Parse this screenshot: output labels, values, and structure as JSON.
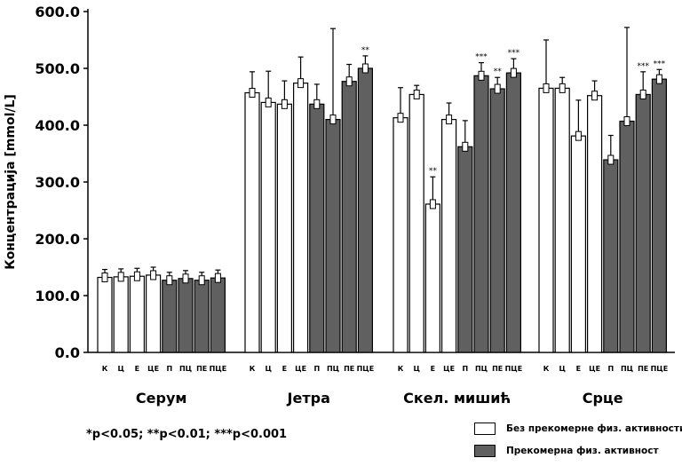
{
  "chart_data": {
    "type": "bar",
    "ylabel": "Концентрација [mmol/L]",
    "ylim": [
      0,
      600
    ],
    "yticks": [
      "0.0",
      "100.0",
      "200.0",
      "300.0",
      "400.0",
      "500.0",
      "600.0"
    ],
    "colors": {
      "white_fill": "#ffffff",
      "gray_fill": "#606060",
      "stroke": "#000000"
    },
    "groups": [
      {
        "name": "Серум",
        "bars": [
          {
            "label": "К",
            "value": 132,
            "err": 14,
            "fill": "white",
            "sig": ""
          },
          {
            "label": "Ц",
            "value": 133,
            "err": 14,
            "fill": "white",
            "sig": ""
          },
          {
            "label": "Е",
            "value": 134,
            "err": 14,
            "fill": "white",
            "sig": ""
          },
          {
            "label": "ЦЕ",
            "value": 136,
            "err": 14,
            "fill": "white",
            "sig": ""
          },
          {
            "label": "П",
            "value": 127,
            "err": 14,
            "fill": "gray",
            "sig": ""
          },
          {
            "label": "ПЦ",
            "value": 130,
            "err": 14,
            "fill": "gray",
            "sig": ""
          },
          {
            "label": "ПЕ",
            "value": 127,
            "err": 14,
            "fill": "gray",
            "sig": ""
          },
          {
            "label": "ПЦЕ",
            "value": 131,
            "err": 14,
            "fill": "gray",
            "sig": ""
          }
        ]
      },
      {
        "name": "Јетра",
        "bars": [
          {
            "label": "К",
            "value": 457,
            "err": 37,
            "fill": "white",
            "sig": ""
          },
          {
            "label": "Ц",
            "value": 440,
            "err": 55,
            "fill": "white",
            "sig": ""
          },
          {
            "label": "Е",
            "value": 437,
            "err": 41,
            "fill": "white",
            "sig": ""
          },
          {
            "label": "ЦЕ",
            "value": 474,
            "err": 46,
            "fill": "white",
            "sig": ""
          },
          {
            "label": "П",
            "value": 437,
            "err": 35,
            "fill": "gray",
            "sig": ""
          },
          {
            "label": "ПЦ",
            "value": 410,
            "err": 160,
            "fill": "gray",
            "sig": ""
          },
          {
            "label": "ПЕ",
            "value": 477,
            "err": 30,
            "fill": "gray",
            "sig": ""
          },
          {
            "label": "ПЦЕ",
            "value": 500,
            "err": 22,
            "fill": "gray",
            "sig": "**"
          }
        ]
      },
      {
        "name": "Скел. мишић",
        "bars": [
          {
            "label": "К",
            "value": 413,
            "err": 53,
            "fill": "white",
            "sig": ""
          },
          {
            "label": "Ц",
            "value": 454,
            "err": 16,
            "fill": "white",
            "sig": ""
          },
          {
            "label": "Е",
            "value": 261,
            "err": 48,
            "fill": "white",
            "sig": "**"
          },
          {
            "label": "ЦЕ",
            "value": 410,
            "err": 29,
            "fill": "white",
            "sig": ""
          },
          {
            "label": "П",
            "value": 362,
            "err": 46,
            "fill": "gray",
            "sig": ""
          },
          {
            "label": "ПЦ",
            "value": 487,
            "err": 23,
            "fill": "gray",
            "sig": "***"
          },
          {
            "label": "ПЕ",
            "value": 464,
            "err": 20,
            "fill": "gray",
            "sig": "**"
          },
          {
            "label": "ПЦЕ",
            "value": 492,
            "err": 25,
            "fill": "gray",
            "sig": "***"
          }
        ]
      },
      {
        "name": "Срце",
        "bars": [
          {
            "label": "К",
            "value": 465,
            "err": 85,
            "fill": "white",
            "sig": ""
          },
          {
            "label": "Ц",
            "value": 465,
            "err": 19,
            "fill": "white",
            "sig": ""
          },
          {
            "label": "Е",
            "value": 381,
            "err": 63,
            "fill": "white",
            "sig": ""
          },
          {
            "label": "ЦЕ",
            "value": 452,
            "err": 26,
            "fill": "white",
            "sig": ""
          },
          {
            "label": "П",
            "value": 339,
            "err": 43,
            "fill": "gray",
            "sig": ""
          },
          {
            "label": "ПЦ",
            "value": 407,
            "err": 165,
            "fill": "gray",
            "sig": ""
          },
          {
            "label": "ПЕ",
            "value": 454,
            "err": 40,
            "fill": "gray",
            "sig": "***"
          },
          {
            "label": "ПЦЕ",
            "value": 481,
            "err": 17,
            "fill": "gray",
            "sig": "***"
          }
        ]
      }
    ],
    "legend": [
      {
        "label": "Без прекомерне физ. активности",
        "fill": "white"
      },
      {
        "label": "Прекомерна физ. активност",
        "fill": "gray"
      }
    ],
    "footnote": "*p<0.05; **p<0.01; ***p<0.001"
  }
}
